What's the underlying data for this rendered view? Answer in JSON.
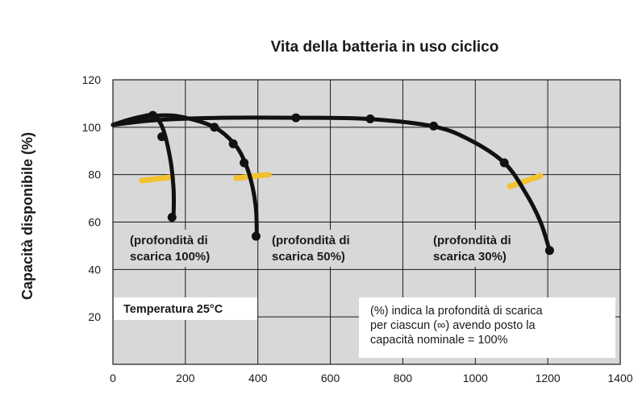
{
  "chart_data": {
    "type": "line",
    "title": "Vita della batteria in uso ciclico",
    "ylabel": "Capacità disponibile (%)",
    "xlabel": "",
    "xlim": [
      0,
      1400
    ],
    "ylim": [
      0,
      120
    ],
    "x_ticks": [
      "0",
      "200",
      "400",
      "600",
      "800",
      "1000",
      "1200",
      "1400"
    ],
    "y_ticks": [
      "20",
      "40",
      "60",
      "80",
      "100",
      "120"
    ],
    "grid": true,
    "series": [
      {
        "annotation_lines": [
          "(profondità di",
          "scarica 100%)"
        ],
        "curve": [
          [
            0,
            101
          ],
          [
            40,
            103
          ],
          [
            80,
            104.5
          ],
          [
            110,
            105
          ],
          [
            130,
            102
          ],
          [
            145,
            96
          ],
          [
            160,
            85
          ],
          [
            167,
            75
          ],
          [
            168,
            68
          ],
          [
            167,
            62
          ]
        ],
        "markers": [
          [
            110,
            105
          ],
          [
            135,
            96
          ],
          [
            163,
            62
          ]
        ],
        "threshold": [
          [
            80,
            77.5
          ],
          [
            165,
            79
          ]
        ]
      },
      {
        "annotation_lines": [
          "(profondità di",
          "scarica 50%)"
        ],
        "curve": [
          [
            0,
            101
          ],
          [
            60,
            103.5
          ],
          [
            140,
            105
          ],
          [
            200,
            104
          ],
          [
            280,
            100
          ],
          [
            335,
            93
          ],
          [
            365,
            85
          ],
          [
            385,
            75
          ],
          [
            395,
            65
          ],
          [
            397,
            54
          ]
        ],
        "markers": [
          [
            280,
            100
          ],
          [
            332,
            93
          ],
          [
            362,
            85
          ],
          [
            395,
            54
          ]
        ],
        "threshold": [
          [
            340,
            78.5
          ],
          [
            430,
            80
          ]
        ]
      },
      {
        "annotation_lines": [
          "(profondità di",
          "scarica 30%)"
        ],
        "curve": [
          [
            0,
            101
          ],
          [
            120,
            103
          ],
          [
            300,
            104
          ],
          [
            500,
            104
          ],
          [
            700,
            103.5
          ],
          [
            880,
            100.5
          ],
          [
            980,
            95
          ],
          [
            1080,
            85
          ],
          [
            1140,
            72
          ],
          [
            1180,
            60
          ],
          [
            1205,
            48
          ]
        ],
        "markers": [
          [
            505,
            104
          ],
          [
            710,
            103.5
          ],
          [
            885,
            100.5
          ],
          [
            1080,
            85
          ],
          [
            1205,
            48
          ]
        ],
        "threshold": [
          [
            1095,
            75
          ],
          [
            1180,
            79.5
          ]
        ]
      }
    ],
    "annotations": {
      "temperature": "Temperatura 25°C",
      "note_lines": [
        "(%) indica la profondità di scarica",
        "per ciascun (∞) avendo posto la",
        "capacità  nominale  =  100%"
      ]
    },
    "colors": {
      "plot_bg": "#d8d8d8",
      "grid": "#1a1a1a",
      "curve": "#111111",
      "threshold": "#f2c230"
    }
  }
}
